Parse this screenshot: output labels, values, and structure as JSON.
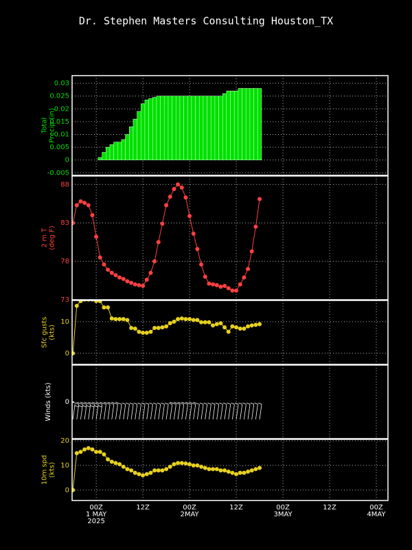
{
  "title": "Dr. Stephen Masters Consulting  Houston_TX",
  "xaxis": {
    "xlim": [
      -6.2,
      75
    ],
    "xticks": [
      {
        "value": 0,
        "label": "00Z\n1 MAY\n2025"
      },
      {
        "value": 12,
        "label": "12Z"
      },
      {
        "value": 24,
        "label": "00Z\n2MAY"
      },
      {
        "value": 36,
        "label": "12Z"
      },
      {
        "value": 48,
        "label": "00Z\n3MAY"
      },
      {
        "value": 60,
        "label": "12Z"
      },
      {
        "value": 72,
        "label": "00Z\n4MAY"
      }
    ],
    "x": [
      -6,
      -5,
      -4,
      -3,
      -2,
      -1,
      0,
      1,
      2,
      3,
      4,
      5,
      6,
      7,
      8,
      9,
      10,
      11,
      12,
      13,
      14,
      15,
      16,
      17,
      18,
      19,
      20,
      21,
      22,
      23,
      24,
      25,
      26,
      27,
      28,
      29,
      30,
      31,
      32,
      33,
      34,
      35,
      36,
      37,
      38,
      39,
      40,
      41,
      42
    ]
  },
  "chart_data": [
    {
      "type": "bar",
      "ylabel": [
        "Total",
        "Precip (in)"
      ],
      "color": "#00e000",
      "ylim": [
        -0.006,
        0.033
      ],
      "yticks": [
        -0.005,
        0,
        0.005,
        0.01,
        0.015,
        0.02,
        0.025,
        0.03
      ],
      "grid": true,
      "values": [
        0,
        0,
        0,
        0,
        0,
        0,
        0,
        0.001,
        0.003,
        0.005,
        0.006,
        0.007,
        0.007,
        0.008,
        0.01,
        0.013,
        0.016,
        0.019,
        0.022,
        0.0235,
        0.024,
        0.0245,
        0.025,
        0.025,
        0.025,
        0.025,
        0.025,
        0.025,
        0.025,
        0.025,
        0.025,
        0.025,
        0.025,
        0.025,
        0.025,
        0.025,
        0.025,
        0.025,
        0.025,
        0.026,
        0.027,
        0.027,
        0.027,
        0.028,
        0.028,
        0.028,
        0.028,
        0.028,
        0.028
      ]
    },
    {
      "type": "line",
      "ylabel": [
        "2 m T",
        "(deg F)"
      ],
      "color": "#ff4040",
      "ylim": [
        73,
        89.1
      ],
      "yticks": [
        73,
        78,
        83,
        88
      ],
      "grid": true,
      "values": [
        83,
        85.3,
        85.8,
        85.6,
        85.3,
        84,
        81.2,
        78.5,
        77.6,
        76.9,
        76.5,
        76.2,
        75.9,
        75.7,
        75.4,
        75.2,
        75.0,
        74.9,
        74.8,
        75.6,
        76.5,
        78,
        80.5,
        82.9,
        85.3,
        86.4,
        87.4,
        88,
        87.6,
        86.3,
        83.9,
        81.6,
        79.6,
        77.6,
        76,
        75.1,
        75,
        74.9,
        74.7,
        74.8,
        74.5,
        74.2,
        74.2,
        75,
        75.9,
        77,
        79.3,
        82.5,
        86.1
      ]
    },
    {
      "type": "line",
      "ylabel": [
        "Sfc gusts",
        "(kts)"
      ],
      "color": "#e6d020",
      "ylim": [
        -3.5,
        16.7
      ],
      "yticks": [
        0,
        10
      ],
      "grid": true,
      "values": [
        0,
        15,
        16.5,
        17,
        17,
        17,
        16.5,
        16.5,
        14.5,
        14.5,
        11,
        10.8,
        10.8,
        10.8,
        10.5,
        8,
        7.8,
        6.8,
        6.5,
        6.5,
        6.8,
        8,
        8,
        8.2,
        8.5,
        9.5,
        10,
        10.8,
        11,
        10.8,
        10.8,
        10.5,
        10.5,
        9.8,
        9.8,
        9.8,
        8.8,
        9.2,
        9.5,
        8.2,
        6.8,
        8.5,
        8.2,
        7.8,
        7.8,
        8.5,
        8.8,
        9,
        9.2
      ]
    },
    {
      "type": "barbs",
      "ylabel": [
        "Winds (kts)"
      ],
      "color": "#ffffff",
      "ylim": [
        -1,
        1
      ],
      "yticks": [
        0
      ],
      "grid": false
    },
    {
      "type": "line",
      "ylabel": [
        "10m spd",
        "(kts)"
      ],
      "color": "#e6d020",
      "ylim": [
        -4.2,
        20.6
      ],
      "yticks": [
        0,
        10,
        20
      ],
      "grid": true,
      "values": [
        0,
        15,
        15.5,
        16.5,
        17,
        16.5,
        15.5,
        15.5,
        14.5,
        12.5,
        11.5,
        11,
        10.5,
        9.5,
        8.5,
        8,
        7,
        6.5,
        6,
        6.5,
        7,
        8,
        8,
        8,
        8.5,
        9.5,
        10.5,
        11,
        11,
        10.8,
        10.5,
        10,
        10,
        9.5,
        9,
        8.5,
        8.5,
        8.5,
        8,
        8,
        7.5,
        7,
        6.5,
        7,
        7,
        7.5,
        8,
        8.5,
        9
      ]
    }
  ]
}
